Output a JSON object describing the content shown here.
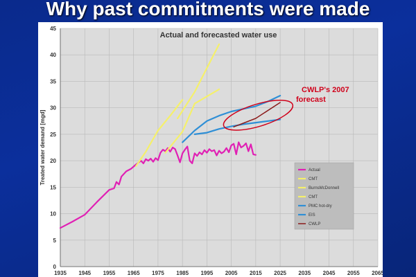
{
  "slide": {
    "title": "Why past commitments were made"
  },
  "colors": {
    "plot_bg": "#dcdcdc",
    "legend_bg": "#bdbdbd",
    "annotation": "#d0021b"
  },
  "chart_data": {
    "type": "line",
    "title": "Actual and forecasted water use",
    "xlabel": "",
    "ylabel": "Treated water demand [mgd]",
    "xlim": [
      1935,
      2065
    ],
    "ylim": [
      0,
      45
    ],
    "xticks": [
      1935,
      1945,
      1955,
      1965,
      1975,
      1985,
      1995,
      2005,
      2015,
      2025,
      2035,
      2045,
      2055,
      2065
    ],
    "yticks": [
      0,
      5,
      10,
      15,
      20,
      25,
      30,
      35,
      40,
      45
    ],
    "grid": true,
    "legend_position": "lower-right",
    "series": [
      {
        "name": "Actual",
        "color": "#e020b4",
        "width": 2.2,
        "points": [
          [
            1935,
            7.3
          ],
          [
            1940,
            8.5
          ],
          [
            1945,
            9.8
          ],
          [
            1950,
            12.2
          ],
          [
            1955,
            14.5
          ],
          [
            1957,
            14.8
          ],
          [
            1958,
            16
          ],
          [
            1959,
            15.5
          ],
          [
            1960,
            17
          ],
          [
            1962,
            18
          ],
          [
            1964,
            18.5
          ],
          [
            1966,
            19.3
          ],
          [
            1968,
            20
          ],
          [
            1969,
            19.5
          ],
          [
            1970,
            20.3
          ],
          [
            1971,
            20
          ],
          [
            1972,
            20.4
          ],
          [
            1973,
            19.8
          ],
          [
            1974,
            20.5
          ],
          [
            1975,
            20.1
          ],
          [
            1976,
            21.5
          ],
          [
            1977,
            22.1
          ],
          [
            1978,
            21.8
          ],
          [
            1979,
            22.4
          ],
          [
            1980,
            21.7
          ],
          [
            1981,
            22.5
          ],
          [
            1982,
            22.2
          ],
          [
            1983,
            21
          ],
          [
            1984,
            19.7
          ],
          [
            1985,
            21.4
          ],
          [
            1986,
            22.1
          ],
          [
            1987,
            22.7
          ],
          [
            1988,
            20
          ],
          [
            1989,
            19.5
          ],
          [
            1990,
            21.4
          ],
          [
            1991,
            20.9
          ],
          [
            1992,
            21.6
          ],
          [
            1993,
            21.2
          ],
          [
            1994,
            22
          ],
          [
            1995,
            21.5
          ],
          [
            1996,
            22.2
          ],
          [
            1997,
            21.8
          ],
          [
            1998,
            22
          ],
          [
            1999,
            21
          ],
          [
            2000,
            21.9
          ],
          [
            2001,
            21.4
          ],
          [
            2002,
            21.7
          ],
          [
            2003,
            22.4
          ],
          [
            2004,
            21.6
          ],
          [
            2005,
            22.9
          ],
          [
            2006,
            23.2
          ],
          [
            2007,
            21.2
          ],
          [
            2008,
            23.5
          ],
          [
            2009,
            22.5
          ],
          [
            2010,
            22.8
          ],
          [
            2011,
            23.3
          ],
          [
            2012,
            21.8
          ],
          [
            2013,
            23.1
          ],
          [
            2014,
            21.2
          ],
          [
            2015,
            21.1
          ]
        ]
      },
      {
        "name": "CMT",
        "color": "#f5f06a",
        "width": 2.2,
        "points": [
          [
            1966,
            19
          ],
          [
            1970,
            21.7
          ],
          [
            1975,
            25.7
          ],
          [
            1980,
            28.5
          ],
          [
            1985,
            31.5
          ]
        ]
      },
      {
        "name": "BurnsMcDonnell",
        "color": "#f5f06a",
        "width": 2.2,
        "points": [
          [
            1978,
            21.5
          ],
          [
            1985,
            25.5
          ],
          [
            1990,
            30.8
          ],
          [
            2000,
            33.5
          ]
        ]
      },
      {
        "name": "CMT",
        "color": "#f5f06a",
        "width": 2.2,
        "points": [
          [
            1983,
            28
          ],
          [
            1990,
            33
          ],
          [
            2000,
            42
          ]
        ]
      },
      {
        "name": "PMC hot-dry",
        "color": "#2f8fd6",
        "width": 2.2,
        "points": [
          [
            1985,
            23.5
          ],
          [
            1990,
            25.7
          ],
          [
            1995,
            27.5
          ],
          [
            2000,
            28.5
          ],
          [
            2005,
            29.3
          ],
          [
            2010,
            29.8
          ],
          [
            2015,
            30.3
          ],
          [
            2020,
            31.2
          ],
          [
            2025,
            32.3
          ]
        ]
      },
      {
        "name": "EIS",
        "color": "#2f8fd6",
        "width": 2.2,
        "points": [
          [
            1990,
            25
          ],
          [
            1995,
            25.3
          ],
          [
            2000,
            26
          ],
          [
            2005,
            26.5
          ],
          [
            2010,
            26.9
          ],
          [
            2015,
            27.2
          ],
          [
            2020,
            27.5
          ],
          [
            2025,
            27.8
          ]
        ]
      },
      {
        "name": "CWLP",
        "color": "#8b1a1a",
        "width": 1.5,
        "points": [
          [
            2006,
            26.4
          ],
          [
            2015,
            28
          ],
          [
            2025,
            31
          ]
        ]
      }
    ],
    "annotation": {
      "text_line1": "CWLP's 2007",
      "text_line2": "forecast"
    }
  }
}
